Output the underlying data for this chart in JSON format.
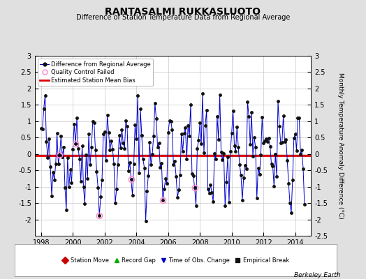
{
  "title": "RANTASALMI RUKKASLUOTO",
  "subtitle": "Difference of Station Temperature Data from Regional Average",
  "ylabel": "Monthly Temperature Anomaly Difference (°C)",
  "xlabel_years": [
    1998,
    2000,
    2002,
    2004,
    2006,
    2008,
    2010,
    2012,
    2014
  ],
  "ylim": [
    -2.5,
    3.0
  ],
  "left_yticks": [
    -2,
    -1.5,
    -1,
    -0.5,
    0,
    0.5,
    1,
    1.5,
    2,
    2.5,
    3
  ],
  "right_yticks": [
    -2.5,
    -2,
    -1.5,
    -1,
    -0.5,
    0,
    0.5,
    1,
    1.5,
    2,
    2.5,
    3
  ],
  "xlim_start": 1997.6,
  "xlim_end": 2015.0,
  "bias_line_y": -0.05,
  "background_color": "#e0e0e0",
  "plot_bg_color": "#ffffff",
  "line_color": "#0000cc",
  "bias_color": "#dd0000",
  "footer": "Berkeley Earth",
  "seed": 42,
  "n_points": 200,
  "start_decimal_year": 1998.0,
  "qc_indices": [
    14,
    26,
    44,
    68,
    92,
    116
  ]
}
